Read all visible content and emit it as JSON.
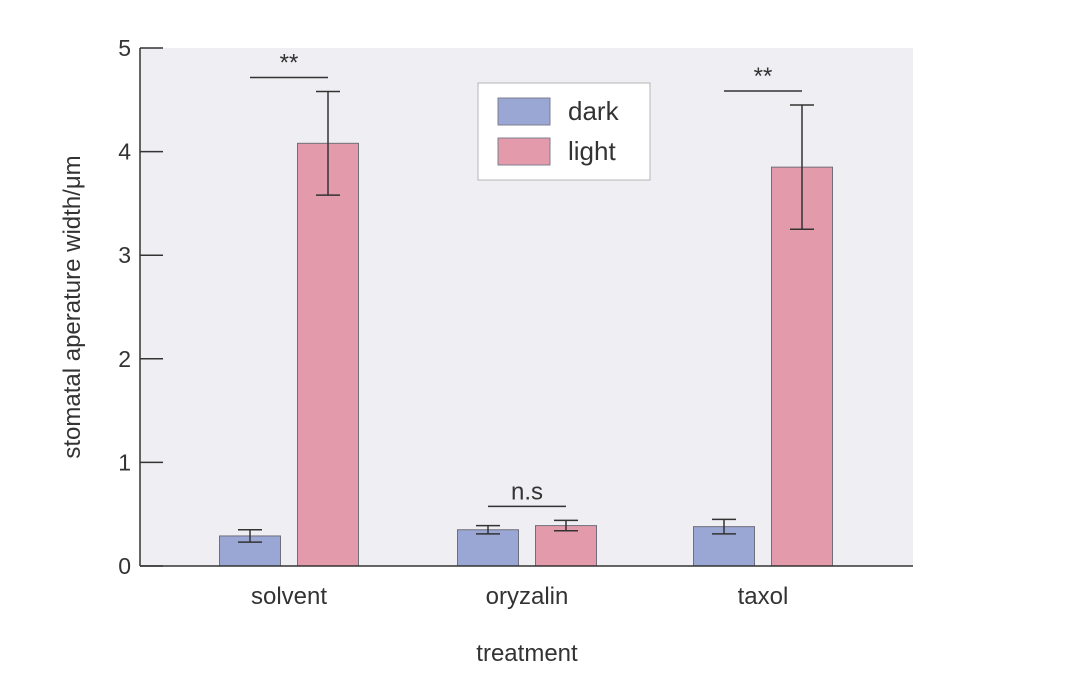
{
  "chart_data": {
    "type": "bar",
    "xlabel": "treatment",
    "ylabel": "stomatal aperature width/μm",
    "ylim": [
      0,
      5
    ],
    "yticks": [
      0,
      1,
      2,
      3,
      4,
      5
    ],
    "categories": [
      "solvent",
      "oryzalin",
      "taxol"
    ],
    "series": [
      {
        "name": "dark",
        "color": "#9aa6d4",
        "values": [
          0.29,
          0.35,
          0.38
        ],
        "errors": [
          0.06,
          0.04,
          0.07
        ]
      },
      {
        "name": "light",
        "color": "#e39aab",
        "values": [
          4.08,
          0.39,
          3.85
        ],
        "errors": [
          0.5,
          0.05,
          0.6
        ]
      }
    ],
    "significance": [
      {
        "category": "solvent",
        "label": "**"
      },
      {
        "category": "oryzalin",
        "label": "n.s"
      },
      {
        "category": "taxol",
        "label": "**"
      }
    ],
    "legend_position": "top-center",
    "plot_background": "#efeef2",
    "grid": false
  }
}
